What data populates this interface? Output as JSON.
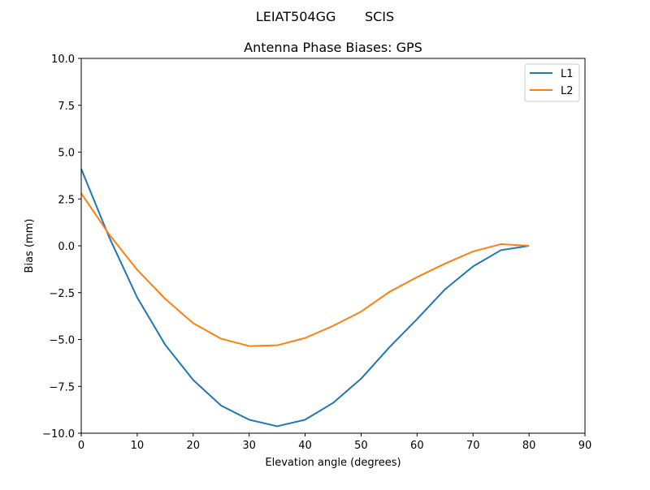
{
  "suptitle": "LEIAT504GG       SCIS",
  "chart_data": {
    "type": "line",
    "title": "Antenna Phase Biases: GPS",
    "xlabel": "Elevation angle (degrees)",
    "ylabel": "Bias (mm)",
    "xlim": [
      0,
      90
    ],
    "ylim": [
      -10,
      10
    ],
    "xticks": [
      0,
      10,
      20,
      30,
      40,
      50,
      60,
      70,
      80,
      90
    ],
    "yticks": [
      -10.0,
      -7.5,
      -5.0,
      -2.5,
      0.0,
      2.5,
      5.0,
      7.5,
      10.0
    ],
    "xtick_labels": [
      "0",
      "10",
      "20",
      "30",
      "40",
      "50",
      "60",
      "70",
      "80",
      "90"
    ],
    "ytick_labels": [
      "−10.0",
      "−7.5",
      "−5.0",
      "−2.5",
      "0.0",
      "2.5",
      "5.0",
      "7.5",
      "10.0"
    ],
    "grid": false,
    "legend": "top-right",
    "x": [
      0,
      5,
      10,
      15,
      20,
      25,
      30,
      35,
      40,
      45,
      50,
      55,
      60,
      65,
      70,
      75,
      80
    ],
    "series": [
      {
        "name": "L1",
        "color": "#1f77b4",
        "values": [
          4.1,
          0.45,
          -2.76,
          -5.28,
          -7.16,
          -8.53,
          -9.28,
          -9.63,
          -9.28,
          -8.38,
          -7.09,
          -5.43,
          -3.91,
          -2.32,
          -1.1,
          -0.23,
          0.0
        ]
      },
      {
        "name": "L2",
        "color": "#ff7f0e",
        "values": [
          2.8,
          0.6,
          -1.28,
          -2.83,
          -4.13,
          -4.96,
          -5.35,
          -5.31,
          -4.92,
          -4.27,
          -3.51,
          -2.47,
          -1.67,
          -0.95,
          -0.3,
          0.09,
          0.0
        ]
      }
    ]
  }
}
